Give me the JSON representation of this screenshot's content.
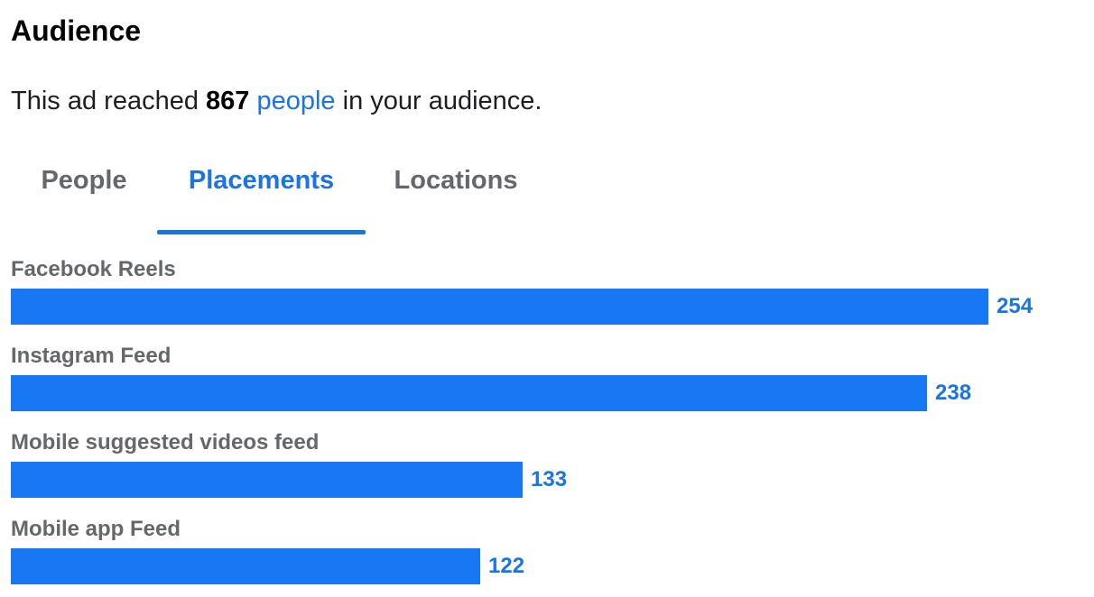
{
  "section": {
    "title": "Audience"
  },
  "summary": {
    "prefix": "This ad reached ",
    "count": "867",
    "link": "people",
    "suffix": " in your audience."
  },
  "tabs": [
    {
      "label": "People",
      "active": false
    },
    {
      "label": "Placements",
      "active": true
    },
    {
      "label": "Locations",
      "active": false
    }
  ],
  "colors": {
    "accent": "#1b74e4",
    "bar": "#1877f2",
    "muted_text": "#65676b"
  },
  "chart_data": {
    "type": "bar",
    "orientation": "horizontal",
    "categories": [
      "Facebook Reels",
      "Instagram Feed",
      "Mobile suggested videos feed",
      "Mobile app Feed"
    ],
    "values": [
      254,
      238,
      133,
      122
    ],
    "value_labels": [
      "254",
      "238",
      "133",
      "122"
    ],
    "xlim": [
      0,
      254
    ],
    "grid": false
  }
}
